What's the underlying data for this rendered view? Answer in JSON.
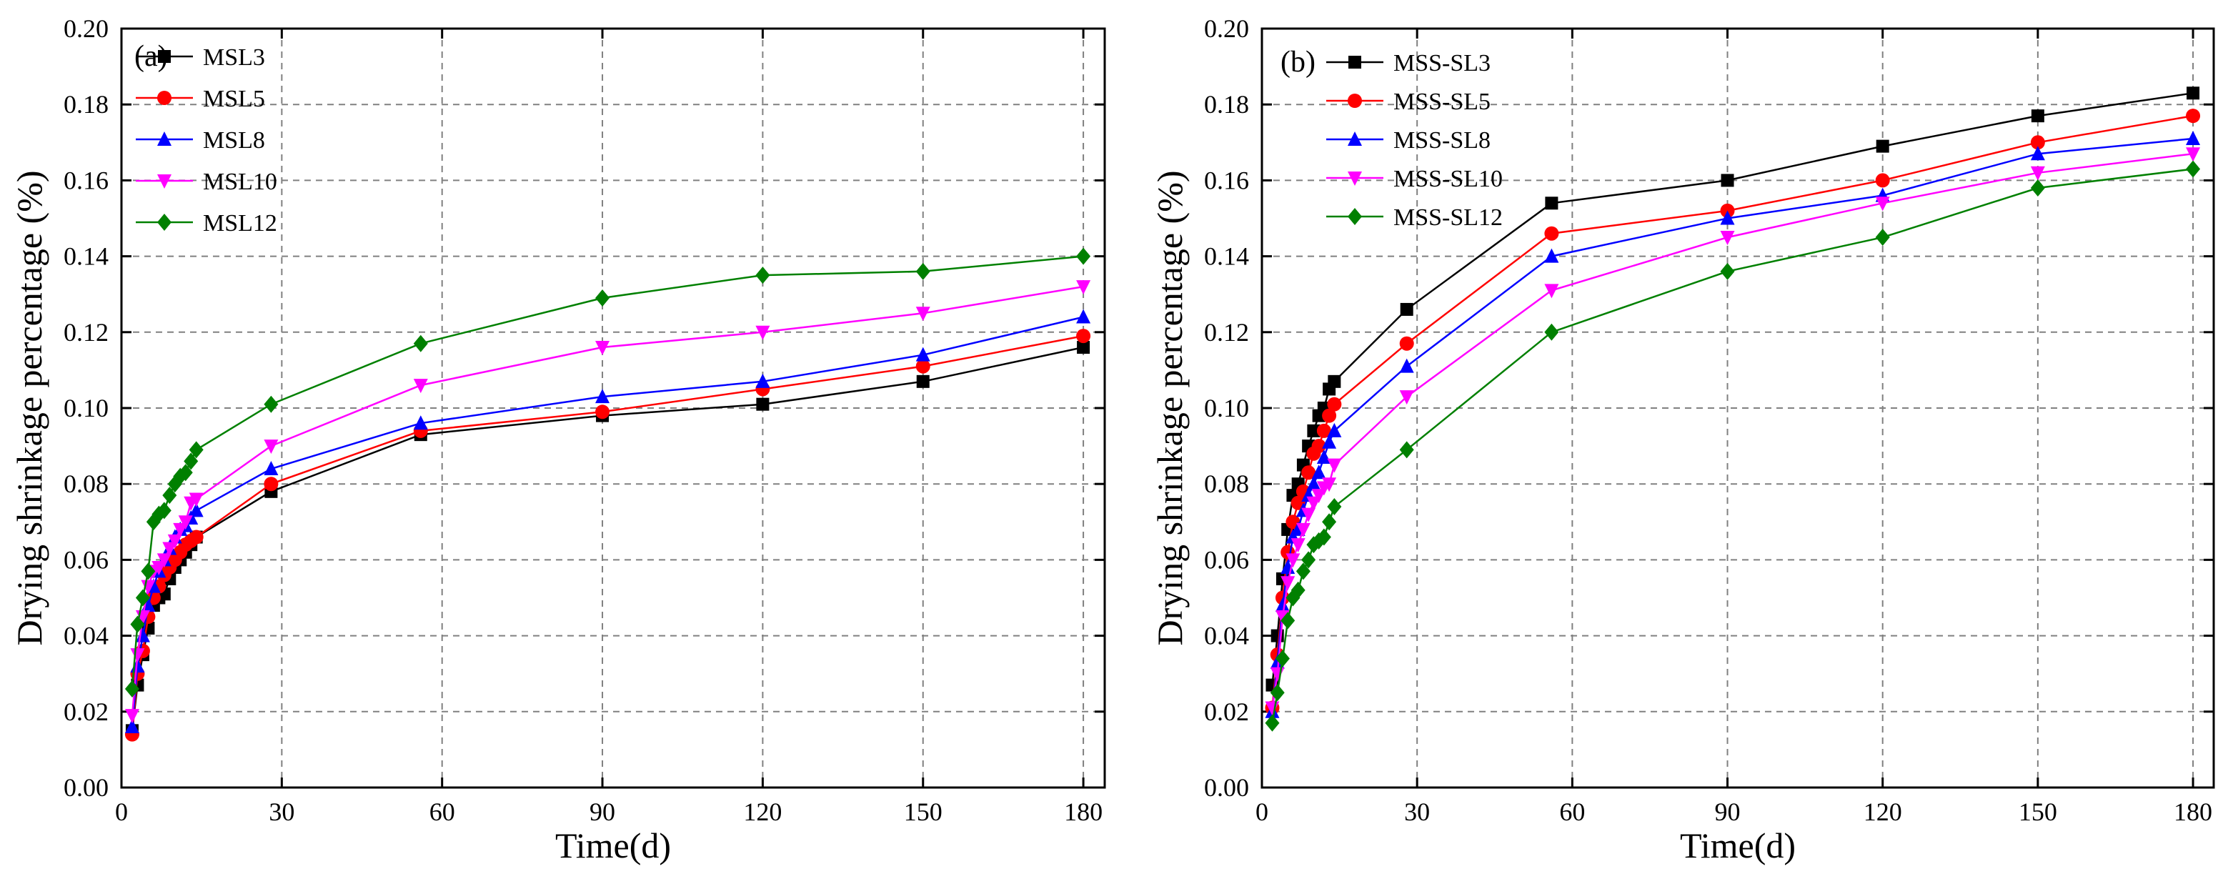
{
  "colors": {
    "black": "#000000",
    "red": "#ff0000",
    "blue": "#0000ff",
    "magenta": "#ff00ff",
    "green": "#008000",
    "grid": "#808080"
  },
  "chart_data": [
    {
      "type": "line",
      "panel_label": "(a)",
      "title": "",
      "xlabel": "Time(d)",
      "ylabel": "Drying shrinkage percentage (%)",
      "xlim": [
        0,
        184
      ],
      "ylim": [
        0,
        0.2
      ],
      "xticks": [
        0,
        30,
        60,
        90,
        120,
        150,
        180
      ],
      "xtick_labels": [
        "0",
        "30",
        "60",
        "90",
        "120",
        "150",
        "180"
      ],
      "yticks": [
        0,
        0.02,
        0.04,
        0.06,
        0.08,
        0.1,
        0.12,
        0.14,
        0.16,
        0.18,
        0.2
      ],
      "ytick_labels": [
        "0.00",
        "0.02",
        "0.04",
        "0.06",
        "0.08",
        "0.10",
        "0.12",
        "0.14",
        "0.16",
        "0.18",
        "0.20"
      ],
      "grid": true,
      "legend_position": "top-left",
      "series": [
        {
          "name": "MSL3",
          "color": "#000000",
          "marker": "square",
          "x": [
            2,
            3,
            4,
            5,
            6,
            7,
            8,
            9,
            10,
            11,
            12,
            13,
            14,
            28,
            56,
            90,
            120,
            150,
            180
          ],
          "y": [
            0.015,
            0.027,
            0.035,
            0.042,
            0.048,
            0.05,
            0.051,
            0.055,
            0.058,
            0.06,
            0.062,
            0.064,
            0.066,
            0.078,
            0.093,
            0.098,
            0.101,
            0.107,
            0.116
          ]
        },
        {
          "name": "MSL5",
          "color": "#ff0000",
          "marker": "circle",
          "x": [
            2,
            3,
            4,
            5,
            6,
            7,
            8,
            9,
            10,
            11,
            12,
            13,
            14,
            28,
            56,
            90,
            120,
            150,
            180
          ],
          "y": [
            0.014,
            0.03,
            0.036,
            0.045,
            0.05,
            0.053,
            0.056,
            0.058,
            0.06,
            0.062,
            0.064,
            0.065,
            0.066,
            0.08,
            0.094,
            0.099,
            0.105,
            0.111,
            0.119
          ]
        },
        {
          "name": "MSL8",
          "color": "#0000ff",
          "marker": "triangle-up",
          "x": [
            2,
            3,
            4,
            5,
            6,
            7,
            8,
            9,
            10,
            11,
            12,
            13,
            14,
            28,
            56,
            90,
            120,
            150,
            180
          ],
          "y": [
            0.016,
            0.032,
            0.04,
            0.048,
            0.053,
            0.057,
            0.06,
            0.063,
            0.066,
            0.068,
            0.069,
            0.071,
            0.073,
            0.084,
            0.096,
            0.103,
            0.107,
            0.114,
            0.124
          ]
        },
        {
          "name": "MSL10",
          "color": "#ff00ff",
          "marker": "triangle-down",
          "x": [
            2,
            3,
            4,
            5,
            6,
            7,
            8,
            9,
            10,
            11,
            12,
            13,
            14,
            28,
            56,
            90,
            120,
            150,
            180
          ],
          "y": [
            0.019,
            0.035,
            0.045,
            0.053,
            0.057,
            0.058,
            0.06,
            0.063,
            0.065,
            0.068,
            0.07,
            0.075,
            0.076,
            0.09,
            0.106,
            0.116,
            0.12,
            0.125,
            0.132
          ]
        },
        {
          "name": "MSL12",
          "color": "#008000",
          "marker": "diamond",
          "x": [
            2,
            3,
            4,
            5,
            6,
            7,
            8,
            9,
            10,
            11,
            12,
            13,
            14,
            28,
            56,
            90,
            120,
            150,
            180
          ],
          "y": [
            0.026,
            0.043,
            0.05,
            0.057,
            0.07,
            0.072,
            0.073,
            0.077,
            0.08,
            0.082,
            0.083,
            0.086,
            0.089,
            0.101,
            0.117,
            0.129,
            0.135,
            0.136,
            0.14
          ]
        }
      ]
    },
    {
      "type": "line",
      "panel_label": "(b)",
      "title": "",
      "xlabel": "Time(d)",
      "ylabel": "Drying shrinkage percentage (%)",
      "xlim": [
        0,
        184
      ],
      "ylim": [
        0,
        0.2
      ],
      "xticks": [
        0,
        30,
        60,
        90,
        120,
        150,
        180
      ],
      "xtick_labels": [
        "0",
        "30",
        "60",
        "90",
        "120",
        "150",
        "180"
      ],
      "yticks": [
        0,
        0.02,
        0.04,
        0.06,
        0.08,
        0.1,
        0.12,
        0.14,
        0.16,
        0.18,
        0.2
      ],
      "ytick_labels": [
        "0.00",
        "0.02",
        "0.04",
        "0.06",
        "0.08",
        "0.10",
        "0.12",
        "0.14",
        "0.16",
        "0.18",
        "0.20"
      ],
      "grid": true,
      "legend_position": "top-left",
      "series": [
        {
          "name": "MSS-SL3",
          "color": "#000000",
          "marker": "square",
          "x": [
            2,
            3,
            4,
            5,
            6,
            7,
            8,
            9,
            10,
            11,
            12,
            13,
            14,
            28,
            56,
            90,
            120,
            150,
            180
          ],
          "y": [
            0.027,
            0.04,
            0.055,
            0.068,
            0.077,
            0.08,
            0.085,
            0.09,
            0.094,
            0.098,
            0.1,
            0.105,
            0.107,
            0.126,
            0.154,
            0.16,
            0.169,
            0.177,
            0.183
          ]
        },
        {
          "name": "MSS-SL5",
          "color": "#ff0000",
          "marker": "circle",
          "x": [
            2,
            3,
            4,
            5,
            6,
            7,
            8,
            9,
            10,
            11,
            12,
            13,
            14,
            28,
            56,
            90,
            120,
            150,
            180
          ],
          "y": [
            0.021,
            0.035,
            0.05,
            0.062,
            0.07,
            0.075,
            0.078,
            0.083,
            0.088,
            0.09,
            0.094,
            0.098,
            0.101,
            0.117,
            0.146,
            0.152,
            0.16,
            0.17,
            0.177
          ]
        },
        {
          "name": "MSS-SL8",
          "color": "#0000ff",
          "marker": "triangle-up",
          "x": [
            2,
            3,
            4,
            5,
            6,
            7,
            8,
            9,
            10,
            11,
            12,
            13,
            14,
            28,
            56,
            90,
            120,
            150,
            180
          ],
          "y": [
            0.02,
            0.033,
            0.048,
            0.058,
            0.066,
            0.068,
            0.073,
            0.077,
            0.08,
            0.083,
            0.087,
            0.091,
            0.094,
            0.111,
            0.14,
            0.15,
            0.156,
            0.167,
            0.171
          ]
        },
        {
          "name": "MSS-SL10",
          "color": "#ff00ff",
          "marker": "triangle-down",
          "x": [
            2,
            3,
            4,
            5,
            6,
            7,
            8,
            9,
            10,
            11,
            12,
            13,
            14,
            28,
            56,
            90,
            120,
            150,
            180
          ],
          "y": [
            0.021,
            0.03,
            0.045,
            0.054,
            0.06,
            0.064,
            0.068,
            0.072,
            0.075,
            0.077,
            0.079,
            0.08,
            0.085,
            0.103,
            0.131,
            0.145,
            0.154,
            0.162,
            0.167
          ]
        },
        {
          "name": "MSS-SL12",
          "color": "#008000",
          "marker": "diamond",
          "x": [
            2,
            3,
            4,
            5,
            6,
            7,
            8,
            9,
            10,
            11,
            12,
            13,
            14,
            28,
            56,
            90,
            120,
            150,
            180
          ],
          "y": [
            0.017,
            0.025,
            0.034,
            0.044,
            0.05,
            0.052,
            0.057,
            0.06,
            0.064,
            0.065,
            0.066,
            0.07,
            0.074,
            0.089,
            0.12,
            0.136,
            0.145,
            0.158,
            0.163
          ]
        }
      ]
    }
  ]
}
